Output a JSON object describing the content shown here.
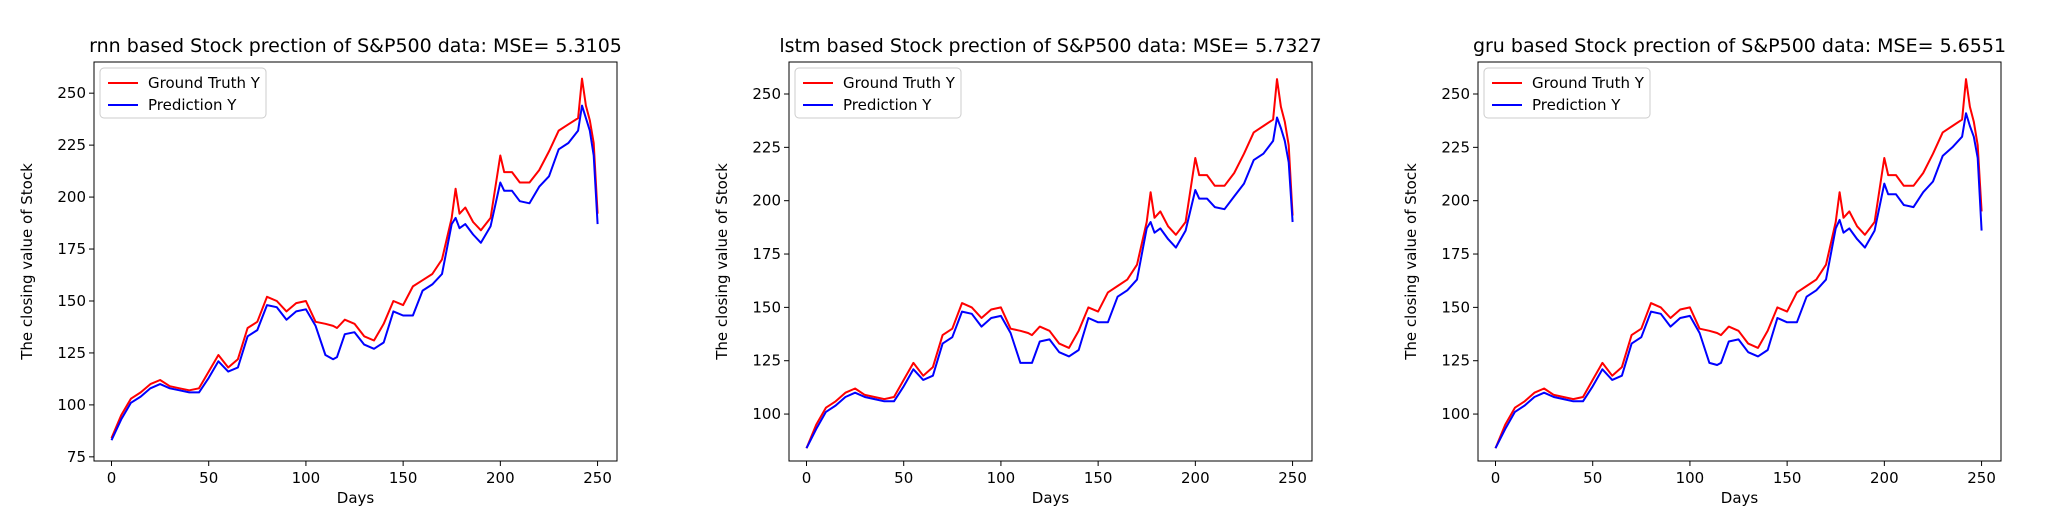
{
  "chart_data": [
    {
      "type": "line",
      "title": "rnn based Stock prection of S&P500 data: MSE= 5.3105",
      "xlabel": "Days",
      "ylabel": "The closing value of Stock",
      "xlim": [
        -9,
        260
      ],
      "ylim": [
        73,
        265
      ],
      "xticks": [
        0,
        50,
        100,
        150,
        200,
        250
      ],
      "yticks": [
        75,
        100,
        125,
        150,
        175,
        200,
        225,
        250
      ],
      "grid": false,
      "legend": "top-left",
      "series": [
        {
          "name": "Ground Truth Y",
          "color": "#ff0000",
          "x": [
            0,
            5,
            10,
            15,
            20,
            25,
            30,
            35,
            40,
            45,
            50,
            55,
            60,
            65,
            70,
            75,
            80,
            85,
            90,
            95,
            100,
            105,
            110,
            114,
            116,
            120,
            125,
            130,
            135,
            140,
            145,
            150,
            155,
            160,
            165,
            170,
            175,
            177,
            179,
            182,
            186,
            190,
            195,
            200,
            202,
            206,
            210,
            215,
            220,
            225,
            230,
            235,
            240,
            242,
            244,
            246,
            248,
            250
          ],
          "values": [
            84,
            95,
            103,
            106,
            110,
            112,
            109,
            108,
            107,
            108,
            116,
            124,
            118,
            122,
            137,
            140,
            152,
            150,
            145,
            149,
            150,
            140,
            139,
            138,
            137,
            141,
            139,
            133,
            131,
            139,
            150,
            148,
            157,
            160,
            163,
            170,
            190,
            204,
            192,
            195,
            188,
            184,
            190,
            220,
            212,
            212,
            207,
            207,
            213,
            222,
            232,
            235,
            238,
            257,
            244,
            237,
            226,
            192
          ]
        },
        {
          "name": "Prediction Y",
          "color": "#0000ff",
          "x": [
            0,
            5,
            10,
            15,
            20,
            25,
            30,
            35,
            40,
            45,
            50,
            55,
            60,
            65,
            70,
            75,
            80,
            85,
            90,
            95,
            100,
            105,
            110,
            114,
            116,
            120,
            125,
            130,
            135,
            140,
            145,
            150,
            155,
            160,
            165,
            170,
            175,
            177,
            179,
            182,
            186,
            190,
            195,
            200,
            202,
            206,
            210,
            215,
            220,
            225,
            230,
            235,
            240,
            242,
            244,
            246,
            248,
            250
          ],
          "values": [
            83,
            93,
            101,
            104,
            108,
            110,
            108,
            107,
            106,
            106,
            113,
            121,
            116,
            118,
            133,
            136,
            148,
            147,
            141,
            145,
            146,
            138,
            124,
            122,
            123,
            134,
            135,
            129,
            127,
            130,
            145,
            143,
            143,
            155,
            158,
            163,
            187,
            190,
            185,
            187,
            182,
            178,
            186,
            207,
            203,
            203,
            198,
            197,
            205,
            210,
            223,
            226,
            232,
            244,
            238,
            232,
            220,
            187
          ]
        }
      ]
    },
    {
      "type": "line",
      "title": "lstm based Stock prection of S&P500 data: MSE= 5.7327",
      "xlabel": "Days",
      "ylabel": "The closing value of Stock",
      "xlim": [
        -9,
        260
      ],
      "ylim": [
        78,
        265
      ],
      "xticks": [
        0,
        50,
        100,
        150,
        200,
        250
      ],
      "yticks": [
        100,
        125,
        150,
        175,
        200,
        225,
        250
      ],
      "grid": false,
      "legend": "top-left",
      "series": [
        {
          "name": "Ground Truth Y",
          "color": "#ff0000",
          "x": [
            0,
            5,
            10,
            15,
            20,
            25,
            30,
            35,
            40,
            45,
            50,
            55,
            60,
            65,
            70,
            75,
            80,
            85,
            90,
            95,
            100,
            105,
            110,
            114,
            116,
            120,
            125,
            130,
            135,
            140,
            145,
            150,
            155,
            160,
            165,
            170,
            175,
            177,
            179,
            182,
            186,
            190,
            195,
            200,
            202,
            206,
            210,
            215,
            220,
            225,
            230,
            235,
            240,
            242,
            244,
            246,
            248,
            250
          ],
          "values": [
            84,
            95,
            103,
            106,
            110,
            112,
            109,
            108,
            107,
            108,
            116,
            124,
            118,
            122,
            137,
            140,
            152,
            150,
            145,
            149,
            150,
            140,
            139,
            138,
            137,
            141,
            139,
            133,
            131,
            139,
            150,
            148,
            157,
            160,
            163,
            170,
            190,
            204,
            192,
            195,
            188,
            184,
            190,
            220,
            212,
            212,
            207,
            207,
            213,
            222,
            232,
            235,
            238,
            257,
            244,
            237,
            226,
            193
          ]
        },
        {
          "name": "Prediction Y",
          "color": "#0000ff",
          "x": [
            0,
            5,
            10,
            15,
            20,
            25,
            30,
            35,
            40,
            45,
            50,
            55,
            60,
            65,
            70,
            75,
            80,
            85,
            90,
            95,
            100,
            105,
            110,
            114,
            116,
            120,
            125,
            130,
            135,
            140,
            145,
            150,
            155,
            160,
            165,
            170,
            175,
            177,
            179,
            182,
            186,
            190,
            195,
            200,
            202,
            206,
            210,
            215,
            220,
            225,
            230,
            235,
            240,
            242,
            244,
            246,
            248,
            250
          ],
          "values": [
            84,
            93,
            101,
            104,
            108,
            110,
            108,
            107,
            106,
            106,
            113,
            121,
            116,
            118,
            133,
            136,
            148,
            147,
            141,
            145,
            146,
            138,
            124,
            124,
            124,
            134,
            135,
            129,
            127,
            130,
            145,
            143,
            143,
            155,
            158,
            163,
            187,
            190,
            185,
            187,
            182,
            178,
            186,
            205,
            201,
            201,
            197,
            196,
            202,
            208,
            219,
            222,
            228,
            239,
            234,
            228,
            218,
            190
          ]
        }
      ]
    },
    {
      "type": "line",
      "title": "gru based Stock prection of S&P500 data: MSE= 5.6551",
      "xlabel": "Days",
      "ylabel": "The closing value of Stock",
      "xlim": [
        -9,
        260
      ],
      "ylim": [
        78,
        265
      ],
      "xticks": [
        0,
        50,
        100,
        150,
        200,
        250
      ],
      "yticks": [
        100,
        125,
        150,
        175,
        200,
        225,
        250
      ],
      "grid": false,
      "legend": "top-left",
      "series": [
        {
          "name": "Ground Truth Y",
          "color": "#ff0000",
          "x": [
            0,
            5,
            10,
            15,
            20,
            25,
            30,
            35,
            40,
            45,
            50,
            55,
            60,
            65,
            70,
            75,
            80,
            85,
            90,
            95,
            100,
            105,
            110,
            114,
            116,
            120,
            125,
            130,
            135,
            140,
            145,
            150,
            155,
            160,
            165,
            170,
            175,
            177,
            179,
            182,
            186,
            190,
            195,
            200,
            202,
            206,
            210,
            215,
            220,
            225,
            230,
            235,
            240,
            242,
            244,
            246,
            248,
            250
          ],
          "values": [
            84,
            95,
            103,
            106,
            110,
            112,
            109,
            108,
            107,
            108,
            116,
            124,
            118,
            122,
            137,
            140,
            152,
            150,
            145,
            149,
            150,
            140,
            139,
            138,
            137,
            141,
            139,
            133,
            131,
            139,
            150,
            148,
            157,
            160,
            163,
            170,
            190,
            204,
            192,
            195,
            188,
            184,
            190,
            220,
            212,
            212,
            207,
            207,
            213,
            222,
            232,
            235,
            238,
            257,
            244,
            237,
            226,
            195
          ]
        },
        {
          "name": "Prediction Y",
          "color": "#0000ff",
          "x": [
            0,
            5,
            10,
            15,
            20,
            25,
            30,
            35,
            40,
            45,
            50,
            55,
            60,
            65,
            70,
            75,
            80,
            85,
            90,
            95,
            100,
            105,
            110,
            114,
            116,
            120,
            125,
            130,
            135,
            140,
            145,
            150,
            155,
            160,
            165,
            170,
            175,
            177,
            179,
            182,
            186,
            190,
            195,
            200,
            202,
            206,
            210,
            215,
            220,
            225,
            230,
            235,
            240,
            242,
            244,
            246,
            248,
            250
          ],
          "values": [
            84,
            93,
            101,
            104,
            108,
            110,
            108,
            107,
            106,
            106,
            113,
            121,
            116,
            118,
            133,
            136,
            148,
            147,
            141,
            145,
            146,
            138,
            124,
            123,
            124,
            134,
            135,
            129,
            127,
            130,
            145,
            143,
            143,
            155,
            158,
            163,
            187,
            191,
            185,
            187,
            182,
            178,
            186,
            208,
            203,
            203,
            198,
            197,
            204,
            209,
            221,
            225,
            230,
            241,
            235,
            230,
            220,
            186
          ]
        }
      ]
    }
  ]
}
